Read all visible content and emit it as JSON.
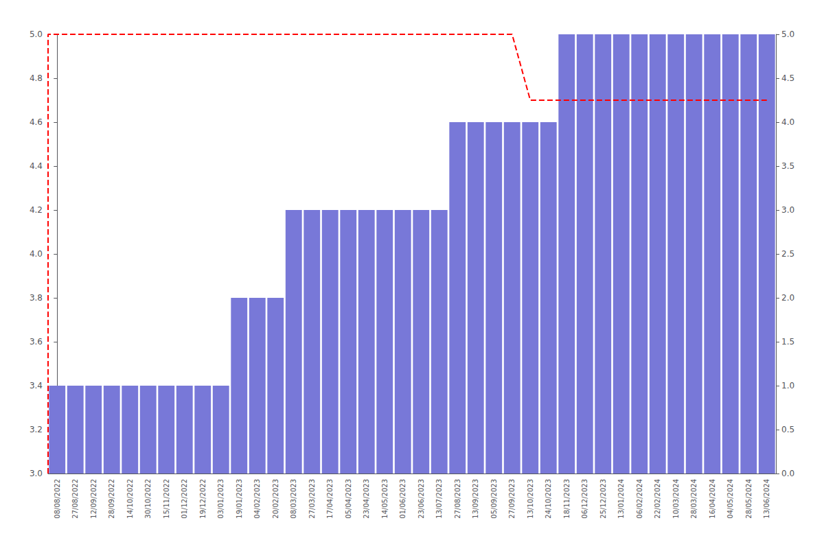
{
  "chart_data": {
    "type": "bar",
    "categories": [
      "08/08/2022",
      "27/08/2022",
      "12/09/2022",
      "28/09/2022",
      "14/10/2022",
      "30/10/2022",
      "15/11/2022",
      "01/12/2022",
      "19/12/2022",
      "03/01/2023",
      "19/01/2023",
      "04/02/2023",
      "20/02/2023",
      "08/03/2023",
      "27/03/2023",
      "17/04/2023",
      "05/04/2023",
      "23/04/2023",
      "14/05/2023",
      "01/06/2023",
      "23/06/2023",
      "13/07/2023",
      "27/08/2023",
      "13/09/2023",
      "05/09/2023",
      "27/09/2023",
      "13/10/2023",
      "24/10/2023",
      "18/11/2023",
      "06/12/2023",
      "25/12/2023",
      "13/01/2024",
      "06/02/2024",
      "22/02/2024",
      "10/03/2024",
      "28/03/2024",
      "16/04/2024",
      "04/05/2024",
      "28/05/2024",
      "13/06/2024"
    ],
    "xlim": [
      -0.5,
      39.5
    ],
    "ylim": [
      3.0,
      5.0
    ],
    "yticks": [
      {
        "value": 3.0,
        "label": "3.0"
      },
      {
        "value": 3.2,
        "label": "3.2"
      },
      {
        "value": 3.4,
        "label": "3.4"
      },
      {
        "value": 3.6,
        "label": "3.6"
      },
      {
        "value": 3.8,
        "label": "3.8"
      },
      {
        "value": 4.0,
        "label": "4.0"
      },
      {
        "value": 4.2,
        "label": "4.2"
      },
      {
        "value": 4.4,
        "label": "4.4"
      },
      {
        "value": 4.6,
        "label": "4.6"
      },
      {
        "value": 4.8,
        "label": "4.8"
      },
      {
        "value": 5.0,
        "label": "5.0"
      }
    ],
    "y2lim": [
      0.0,
      5.0
    ],
    "y2ticks": [
      {
        "value": 0.0,
        "label": "0.0"
      },
      {
        "value": 0.5,
        "label": "0.5"
      },
      {
        "value": 1.0,
        "label": "1.0"
      },
      {
        "value": 1.5,
        "label": "1.5"
      },
      {
        "value": 2.0,
        "label": "2.0"
      },
      {
        "value": 2.5,
        "label": "2.5"
      },
      {
        "value": 3.0,
        "label": "3.0"
      },
      {
        "value": 3.5,
        "label": "3.5"
      },
      {
        "value": 4.0,
        "label": "4.0"
      },
      {
        "value": 4.5,
        "label": "4.5"
      },
      {
        "value": 5.0,
        "label": "5.0"
      }
    ],
    "grid": false,
    "series": [
      {
        "type": "bar",
        "color": "#7878d8",
        "values": [
          3.4,
          3.4,
          3.4,
          3.4,
          3.4,
          3.4,
          3.4,
          3.4,
          3.4,
          3.4,
          3.8,
          3.8,
          3.8,
          4.2,
          4.2,
          4.2,
          4.2,
          4.2,
          4.2,
          4.2,
          4.2,
          4.2,
          4.6,
          4.6,
          4.6,
          4.6,
          4.6,
          4.6,
          5.0,
          5.0,
          5.0,
          5.0,
          5.0,
          5.0,
          5.0,
          5.0,
          5.0,
          5.0,
          5.0,
          5.0
        ]
      },
      {
        "type": "line",
        "color": "#ff0000",
        "line_style": "dashed",
        "x": [
          -0.5,
          -0.5,
          0,
          1,
          2,
          3,
          4,
          5,
          6,
          7,
          8,
          9,
          10,
          11,
          12,
          13,
          14,
          15,
          16,
          17,
          18,
          19,
          20,
          21,
          22,
          23,
          24,
          25,
          26,
          27,
          28,
          29,
          30,
          31,
          32,
          33,
          34,
          35,
          36,
          37,
          38,
          39
        ],
        "values": [
          3.0,
          5.0,
          5.0,
          5.0,
          5.0,
          5.0,
          5.0,
          5.0,
          5.0,
          5.0,
          5.0,
          5.0,
          5.0,
          5.0,
          5.0,
          5.0,
          5.0,
          5.0,
          5.0,
          5.0,
          5.0,
          5.0,
          5.0,
          5.0,
          5.0,
          5.0,
          5.0,
          5.0,
          4.7,
          4.7,
          4.7,
          4.7,
          4.7,
          4.7,
          4.7,
          4.7,
          4.7,
          4.7,
          4.7,
          4.7,
          4.7,
          4.7
        ]
      }
    ]
  }
}
